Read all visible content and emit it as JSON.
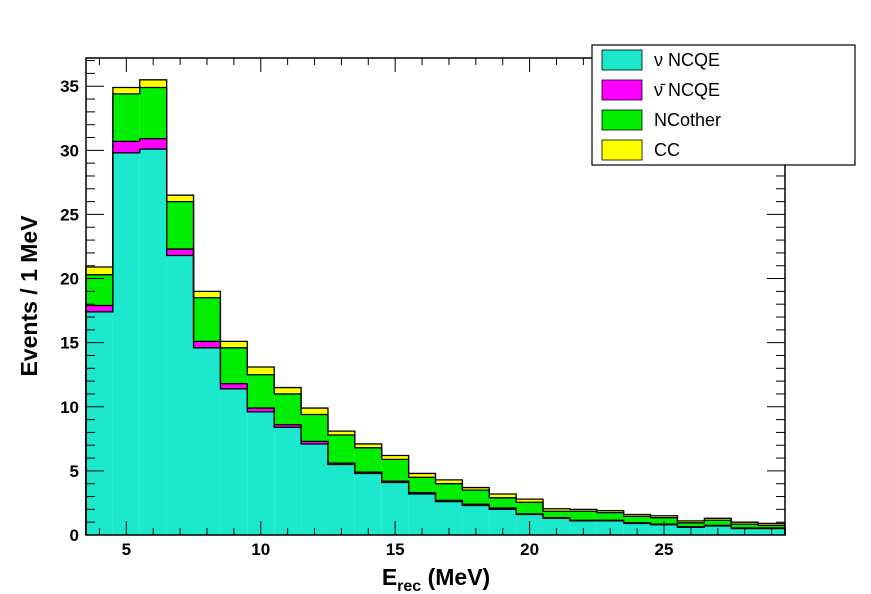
{
  "chart_data": {
    "type": "bar",
    "stacked": true,
    "histogram": true,
    "xlabel": {
      "main": "E",
      "sub": "rec",
      "unit": " (MeV)"
    },
    "ylabel": "Events / 1 MeV",
    "xlim": [
      3.5,
      29.5
    ],
    "ylim": [
      0,
      37.2
    ],
    "xticks_major": [
      5,
      10,
      15,
      20,
      25
    ],
    "xticks_minor_step": 1,
    "yticks_major": [
      0,
      5,
      10,
      15,
      20,
      25,
      30,
      35
    ],
    "yticks_minor_step": 1,
    "bin_edges": [
      3.5,
      4.5,
      5.5,
      6.5,
      7.5,
      8.5,
      9.5,
      10.5,
      11.5,
      12.5,
      13.5,
      14.5,
      15.5,
      16.5,
      17.5,
      18.5,
      19.5,
      20.5,
      21.5,
      22.5,
      23.5,
      24.5,
      25.5,
      26.5,
      27.5,
      28.5,
      29.5
    ],
    "grid": false,
    "legend_position": "top-right",
    "series": [
      {
        "name": "ν NCQE",
        "color": "#1be8cc",
        "values": [
          17.4,
          29.8,
          30.1,
          21.8,
          14.6,
          11.4,
          9.6,
          8.4,
          7.1,
          5.5,
          4.8,
          4.1,
          3.2,
          2.6,
          2.3,
          2.0,
          1.6,
          1.3,
          1.1,
          1.1,
          0.9,
          0.8,
          0.6,
          0.7,
          0.5,
          0.5
        ]
      },
      {
        "name": "ν̄ NCQE",
        "color": "#ff00ff",
        "values": [
          0.5,
          0.9,
          0.8,
          0.5,
          0.5,
          0.4,
          0.3,
          0.2,
          0.2,
          0.1,
          0.1,
          0.1,
          0.1,
          0.1,
          0.1,
          0.1,
          0.05,
          0.05,
          0.05,
          0.05,
          0.05,
          0.05,
          0.05,
          0.05,
          0.05,
          0.05
        ]
      },
      {
        "name": "NCother",
        "color": "#00ee00",
        "values": [
          2.4,
          3.7,
          4.0,
          3.7,
          3.4,
          2.8,
          2.6,
          2.4,
          2.1,
          2.2,
          1.9,
          1.7,
          1.2,
          1.3,
          1.1,
          0.8,
          0.9,
          0.5,
          0.7,
          0.6,
          0.5,
          0.5,
          0.3,
          0.4,
          0.3,
          0.2
        ]
      },
      {
        "name": "CC",
        "color": "#ffff00",
        "values": [
          0.6,
          0.5,
          0.6,
          0.5,
          0.5,
          0.5,
          0.6,
          0.5,
          0.5,
          0.3,
          0.3,
          0.3,
          0.3,
          0.3,
          0.2,
          0.3,
          0.25,
          0.2,
          0.15,
          0.15,
          0.15,
          0.15,
          0.15,
          0.15,
          0.15,
          0.15
        ]
      }
    ]
  }
}
